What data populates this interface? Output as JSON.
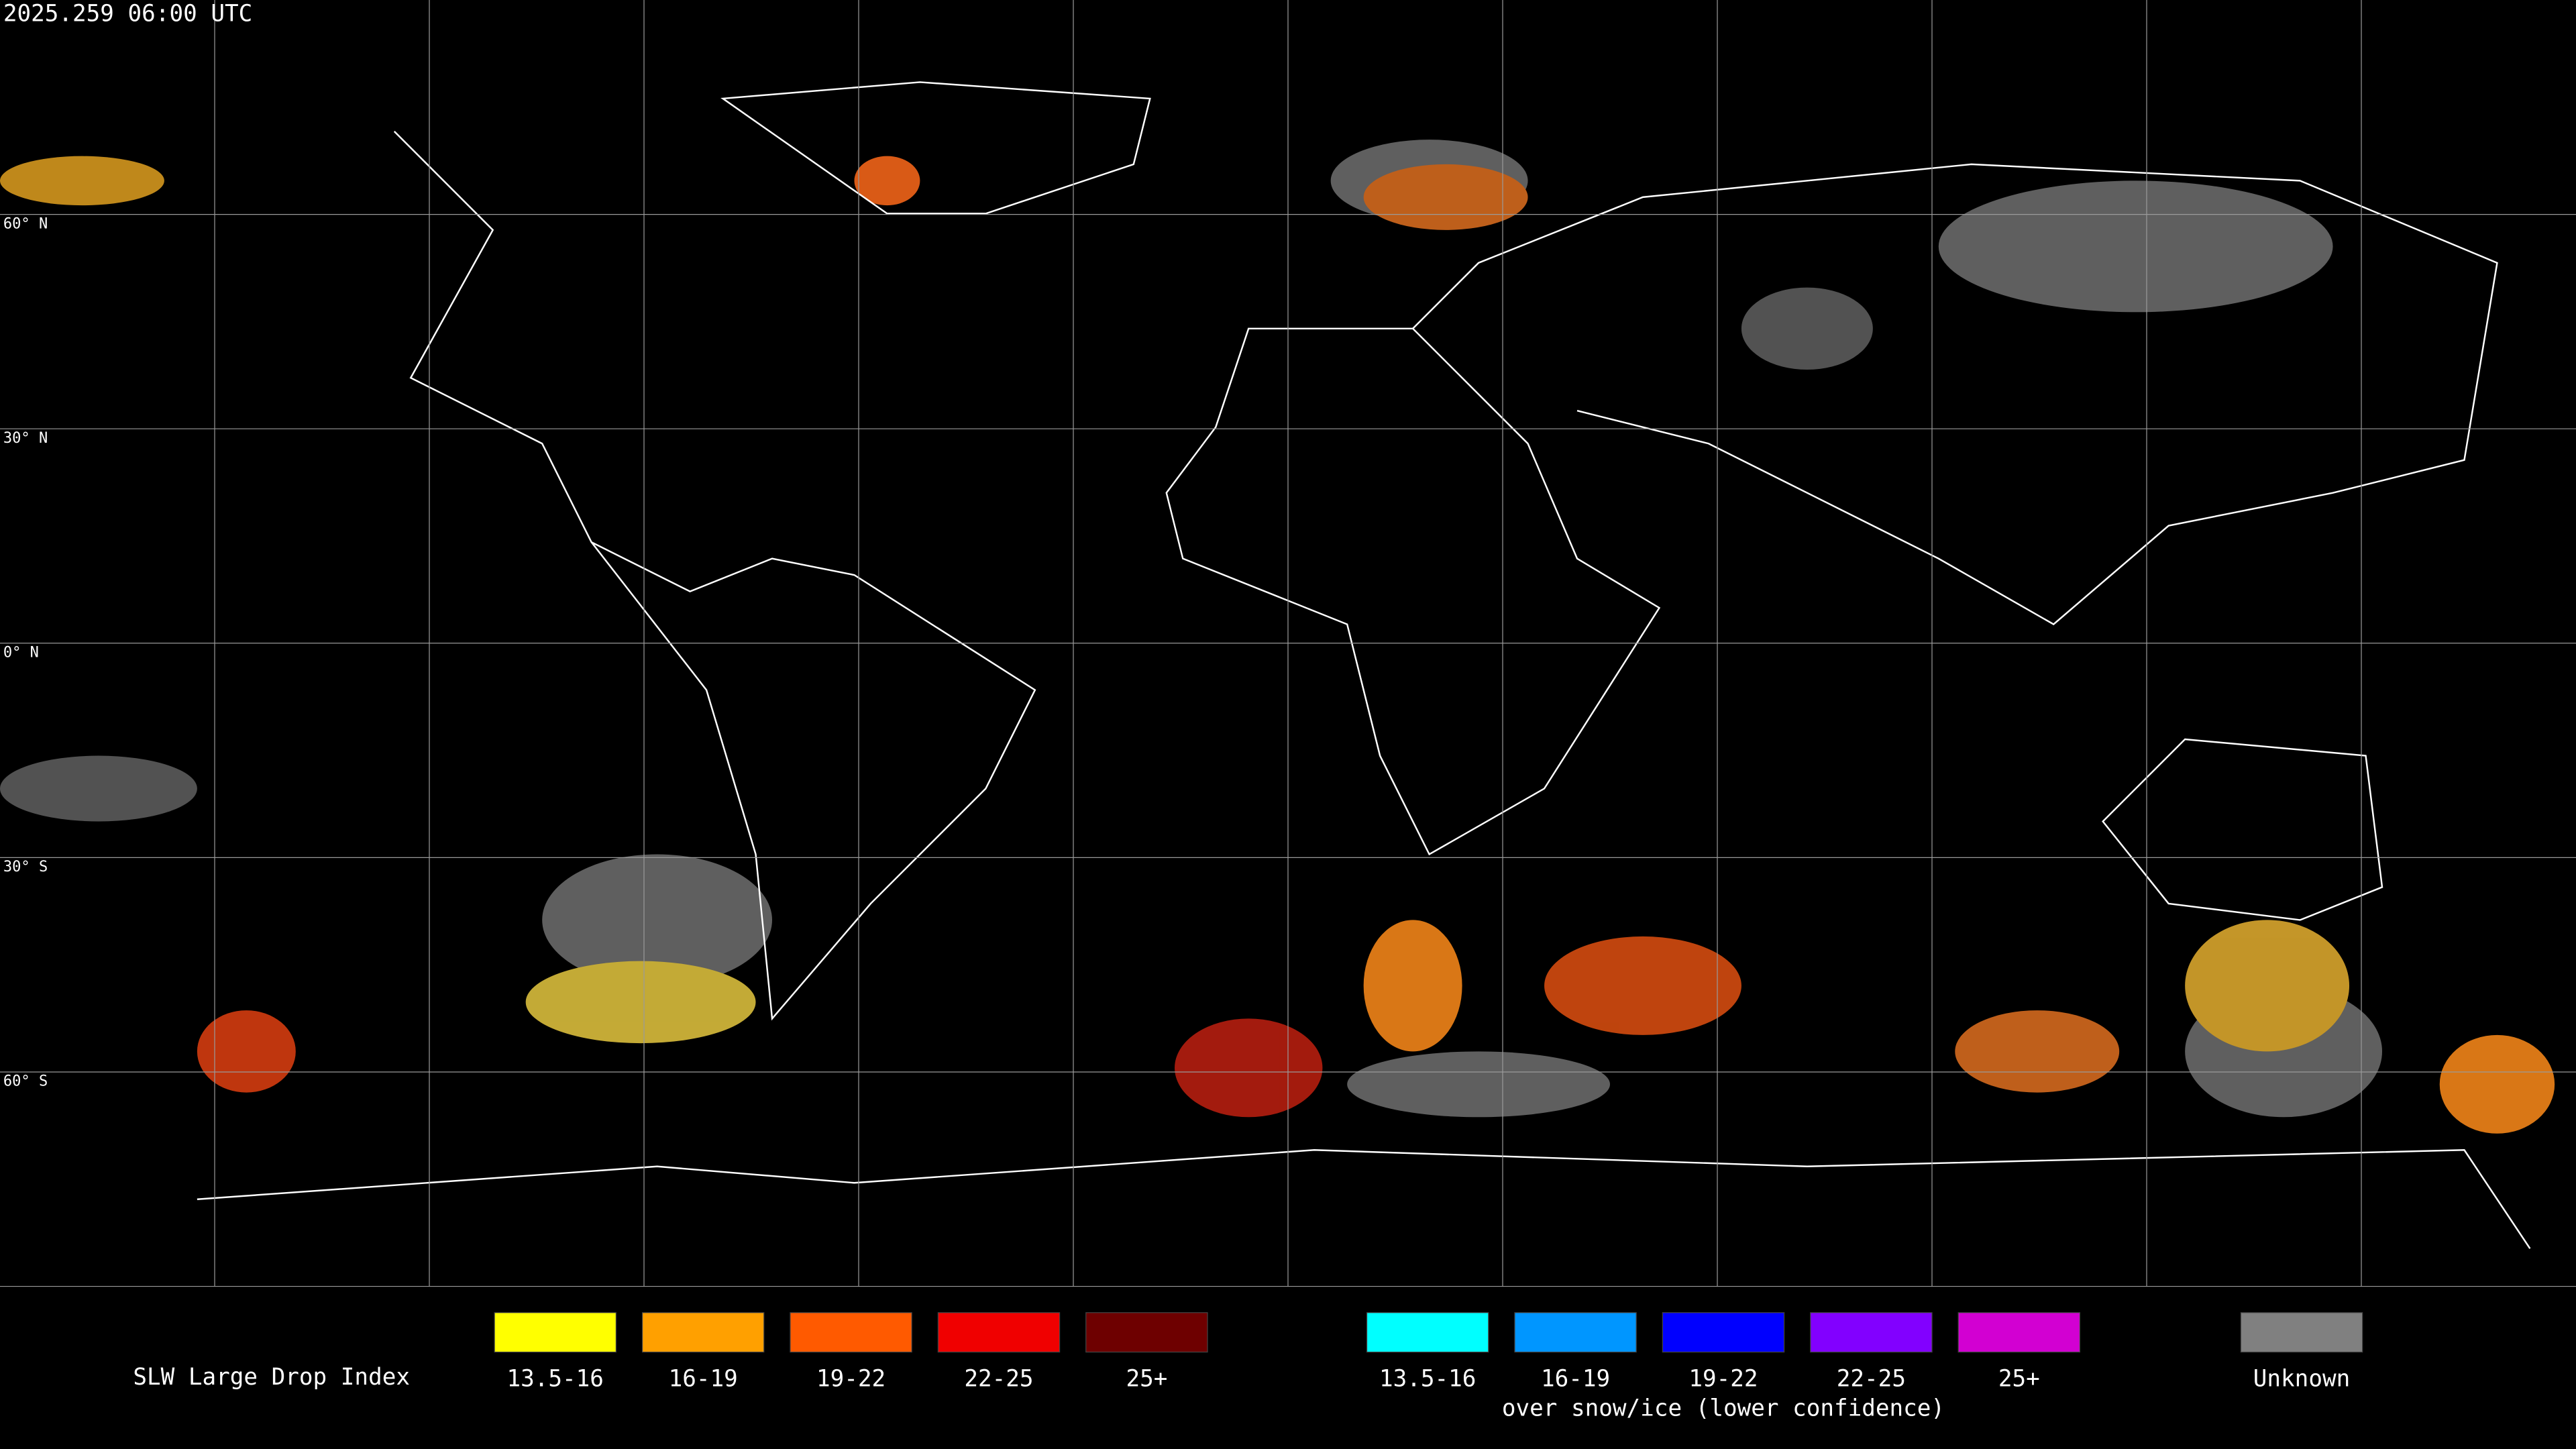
{
  "header": {
    "timestamp": "2025.259 06:00 UTC"
  },
  "grid": {
    "latitude_labels": [
      "60° N",
      "30° N",
      "0° N",
      "30° S",
      "60° S"
    ]
  },
  "legend": {
    "title": "SLW Large Drop Index",
    "standard": [
      {
        "label": "13.5-16",
        "color": "#ffff00"
      },
      {
        "label": "16-19",
        "color": "#ffa000"
      },
      {
        "label": "19-22",
        "color": "#ff5a00"
      },
      {
        "label": "22-25",
        "color": "#f00000"
      },
      {
        "label": "25+",
        "color": "#6e0000"
      }
    ],
    "snow_ice": [
      {
        "label": "13.5-16",
        "color": "#00ffff"
      },
      {
        "label": "16-19",
        "color": "#0096ff"
      },
      {
        "label": "19-22",
        "color": "#0000ff"
      },
      {
        "label": "22-25",
        "color": "#8200ff"
      },
      {
        "label": "25+",
        "color": "#d200d2"
      }
    ],
    "snow_ice_caption": "over snow/ice (lower confidence)",
    "unknown": {
      "label": "Unknown",
      "color": "#808080"
    }
  }
}
